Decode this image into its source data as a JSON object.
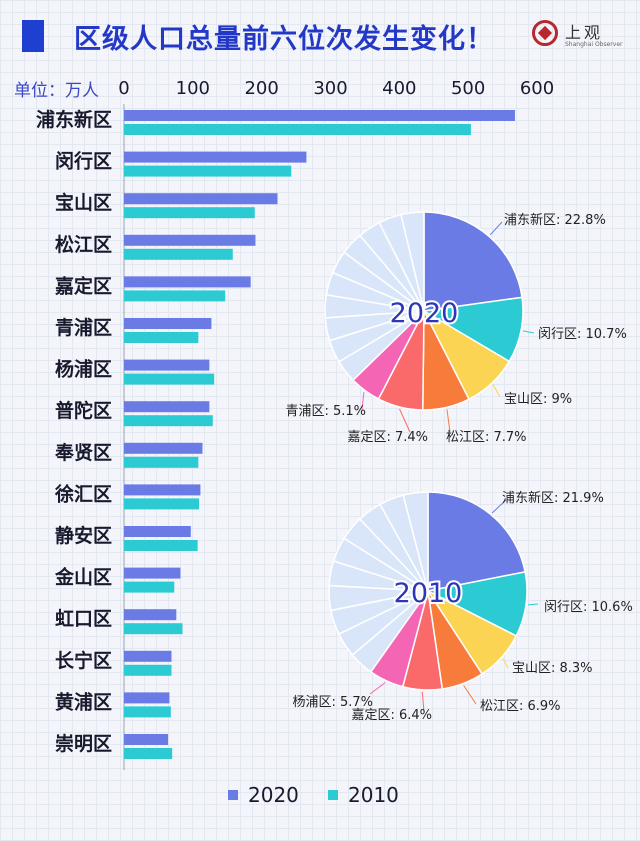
{
  "header": {
    "title": "区级人口总量前六位次发生变化！",
    "logo_text": "上观",
    "logo_sub": "Shanghai Observer"
  },
  "unit_label": "单位：万人",
  "colors": {
    "s2020": "#6a7be6",
    "s2010": "#2ccbd4",
    "pale": "#d9e6fa",
    "label": "#222222"
  },
  "chart_data": [
    {
      "type": "bar",
      "orientation": "horizontal",
      "categories": [
        "浦东新区",
        "闵行区",
        "宝山区",
        "松江区",
        "嘉定区",
        "青浦区",
        "杨浦区",
        "普陀区",
        "奉贤区",
        "徐汇区",
        "静安区",
        "金山区",
        "虹口区",
        "长宁区",
        "黄浦区",
        "崇明区"
      ],
      "series": [
        {
          "name": "2020",
          "values": [
            568,
            265,
            223,
            191,
            184,
            127,
            124,
            124,
            114,
            111,
            97,
            82,
            76,
            69,
            66,
            64
          ]
        },
        {
          "name": "2010",
          "values": [
            504,
            243,
            190,
            158,
            147,
            108,
            131,
            129,
            108,
            109,
            107,
            73,
            85,
            69,
            68,
            70
          ]
        }
      ],
      "xlim": [
        0,
        600
      ],
      "xticks": [
        0,
        100,
        200,
        300,
        400,
        500,
        600
      ],
      "legend": "bottom"
    },
    {
      "type": "pie",
      "center_label": "2020",
      "slices": [
        {
          "label": "浦东新区: 22.8%",
          "value": 22.8,
          "color": "#6a7be6"
        },
        {
          "label": "闵行区: 10.7%",
          "value": 10.7,
          "color": "#2ccbd4"
        },
        {
          "label": "宝山区: 9%",
          "value": 9.0,
          "color": "#fcd453"
        },
        {
          "label": "松江区: 7.7%",
          "value": 7.7,
          "color": "#f77b3a"
        },
        {
          "label": "嘉定区: 7.4%",
          "value": 7.4,
          "color": "#fb6a6a"
        },
        {
          "label": "青浦区: 5.1%",
          "value": 5.1,
          "color": "#f466b4"
        }
      ],
      "rest": {
        "value": 37.3,
        "segments": 10,
        "color": "#d9e6fa"
      }
    },
    {
      "type": "pie",
      "center_label": "2010",
      "slices": [
        {
          "label": "浦东新区: 21.9%",
          "value": 21.9,
          "color": "#6a7be6"
        },
        {
          "label": "闵行区: 10.6%",
          "value": 10.6,
          "color": "#2ccbd4"
        },
        {
          "label": "宝山区: 8.3%",
          "value": 8.3,
          "color": "#fcd453"
        },
        {
          "label": "松江区: 6.9%",
          "value": 6.9,
          "color": "#f77b3a"
        },
        {
          "label": "嘉定区: 6.4%",
          "value": 6.4,
          "color": "#fb6a6a"
        },
        {
          "label": "杨浦区: 5.7%",
          "value": 5.7,
          "color": "#f466b4"
        }
      ],
      "rest": {
        "value": 40.2,
        "segments": 10,
        "color": "#d9e6fa"
      }
    }
  ]
}
